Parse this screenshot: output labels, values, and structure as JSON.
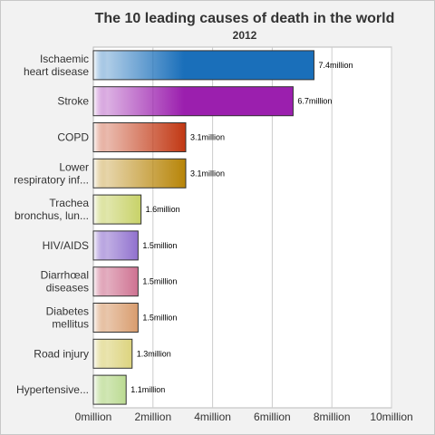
{
  "chart_data": {
    "type": "bar",
    "orientation": "horizontal",
    "title": "The 10 leading causes of death in the world",
    "subtitle": "2012",
    "categories": [
      [
        "Ischaemic",
        "heart disease"
      ],
      [
        "Stroke"
      ],
      [
        "COPD"
      ],
      [
        "Lower",
        "respiratory inf..."
      ],
      [
        "Trachea",
        "bronchus, lun..."
      ],
      [
        "HIV/AIDS"
      ],
      [
        "Diarrhœal",
        "diseases"
      ],
      [
        "Diabetes",
        "mellitus"
      ],
      [
        "Road injury"
      ],
      [
        "Hypertensive..."
      ]
    ],
    "values": [
      7.4,
      6.7,
      3.1,
      3.1,
      1.6,
      1.5,
      1.5,
      1.5,
      1.3,
      1.1
    ],
    "data_labels": [
      "7.4million",
      "6.7million",
      "3.1million",
      "3.1million",
      "1.6million",
      "1.5million",
      "1.5million",
      "1.5million",
      "1.3million",
      "1.1million"
    ],
    "colors": [
      "#1a6fba",
      "#9b1fae",
      "#c23a16",
      "#b8860b",
      "#a8b812",
      "#4b18b0",
      "#b0194c",
      "#c05e12",
      "#c2b21a",
      "#7ab82a"
    ],
    "xlim": [
      0,
      10
    ],
    "xticks": [
      0,
      2,
      4,
      6,
      8,
      10
    ],
    "xtick_labels": [
      "0million",
      "2million",
      "4million",
      "6million",
      "8million",
      "10million"
    ],
    "grid": "vertical"
  }
}
